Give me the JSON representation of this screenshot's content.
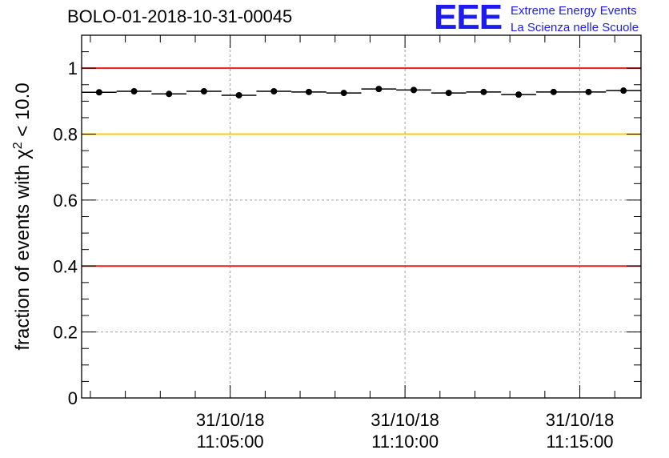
{
  "header": {
    "title": "BOLO-01-2018-10-31-00045",
    "logo_mark": "EEE",
    "logo_line1": "Extreme Energy Events",
    "logo_line2": "La Scienza nelle Scuole"
  },
  "chart_data": {
    "type": "scatter",
    "title": "BOLO-01-2018-10-31-00045",
    "ylabel_parts": [
      "fraction of events with ",
      "χ",
      "2",
      " < 10.0"
    ],
    "ylim": [
      0,
      1.1
    ],
    "yticks": [
      0,
      0.2,
      0.4,
      0.6,
      0.8,
      1
    ],
    "ytick_labels": [
      "0",
      "0.2",
      "0.4",
      "0.6",
      "0.8",
      "1"
    ],
    "x_units": "minutes after 11:00:00 on 31/10/18",
    "xlim": [
      0.75,
      16.75
    ],
    "x_major_ticks": [
      5,
      10,
      15
    ],
    "x_tick_labels": [
      [
        "31/10/18",
        "11:05:00"
      ],
      [
        "31/10/18",
        "11:10:00"
      ],
      [
        "31/10/18",
        "11:15:00"
      ]
    ],
    "x_minor_step": 1,
    "bin_width": 1,
    "grid": true,
    "reference_lines": [
      {
        "y": 1.0,
        "color": "#ee1c1c"
      },
      {
        "y": 0.8,
        "color": "#ffcc00"
      },
      {
        "y": 0.4,
        "color": "#ee1c1c"
      }
    ],
    "series": [
      {
        "color": "#000000",
        "x": [
          1.25,
          2.25,
          3.25,
          4.25,
          5.25,
          6.25,
          7.25,
          8.25,
          9.25,
          10.25,
          11.25,
          12.25,
          13.25,
          14.25,
          15.25,
          16.25
        ],
        "y": [
          0.927,
          0.93,
          0.922,
          0.93,
          0.918,
          0.93,
          0.928,
          0.925,
          0.937,
          0.934,
          0.925,
          0.928,
          0.92,
          0.928,
          0.928,
          0.932
        ]
      }
    ]
  }
}
